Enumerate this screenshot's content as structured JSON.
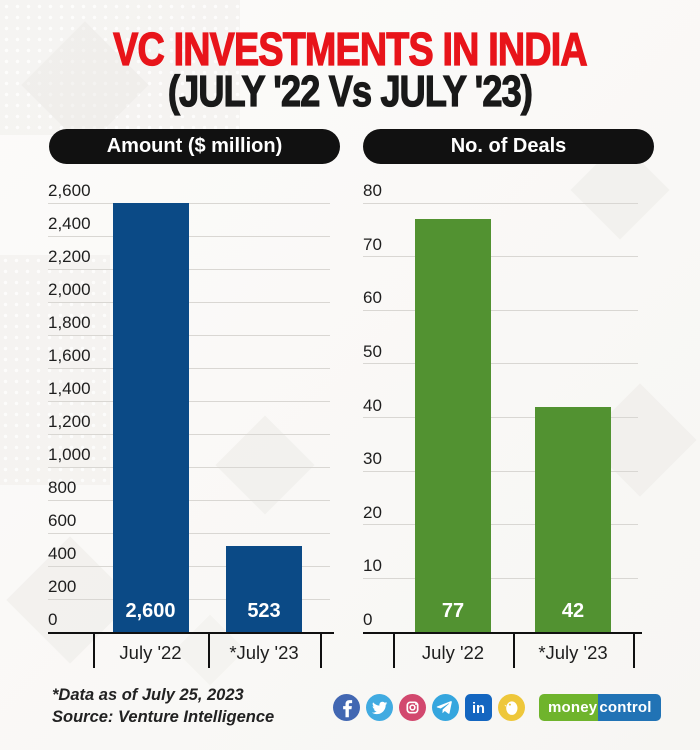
{
  "page": {
    "title_line1": "VC INVESTMENTS IN INDIA",
    "title_line2": "(JULY '22 Vs JULY '23)",
    "title_color": "#e8141a"
  },
  "chart_data": [
    {
      "type": "bar",
      "title": "Amount ($ million)",
      "categories": [
        "July '22",
        "*July '23"
      ],
      "values": [
        2600,
        523
      ],
      "value_labels": [
        "2,600",
        "523"
      ],
      "ylim": [
        0,
        2600
      ],
      "ytick_step": 200,
      "ytick_labels": [
        "0",
        "200",
        "400",
        "600",
        "800",
        "1,000",
        "1,200",
        "1,400",
        "1,600",
        "1,800",
        "2,000",
        "2,200",
        "2,400",
        "2,600"
      ],
      "bar_color": "#0b4a86",
      "grid": true,
      "legend": "none"
    },
    {
      "type": "bar",
      "title": "No. of Deals",
      "categories": [
        "July '22",
        "*July '23"
      ],
      "values": [
        77,
        42
      ],
      "value_labels": [
        "77",
        "42"
      ],
      "ylim": [
        0,
        80
      ],
      "ytick_step": 10,
      "ytick_labels": [
        "0",
        "10",
        "20",
        "30",
        "40",
        "50",
        "60",
        "70",
        "80"
      ],
      "bar_color": "#529231",
      "grid": true,
      "legend": "none"
    }
  ],
  "footnote": {
    "line1": "*Data as of July 25, 2023",
    "line2": "Source: Venture Intelligence"
  },
  "social_icons": [
    {
      "name": "facebook",
      "color": "#4267b2"
    },
    {
      "name": "twitter",
      "color": "#41abe1"
    },
    {
      "name": "instagram",
      "color": "#d2486e"
    },
    {
      "name": "telegram",
      "color": "#35a6de"
    },
    {
      "name": "linkedin",
      "color": "#1466c0"
    },
    {
      "name": "koo",
      "color": "#eec73a"
    }
  ],
  "brand": {
    "part1": "money",
    "part2": "control",
    "part1_bg": "#6fb42c",
    "part2_bg": "#2173b5"
  }
}
